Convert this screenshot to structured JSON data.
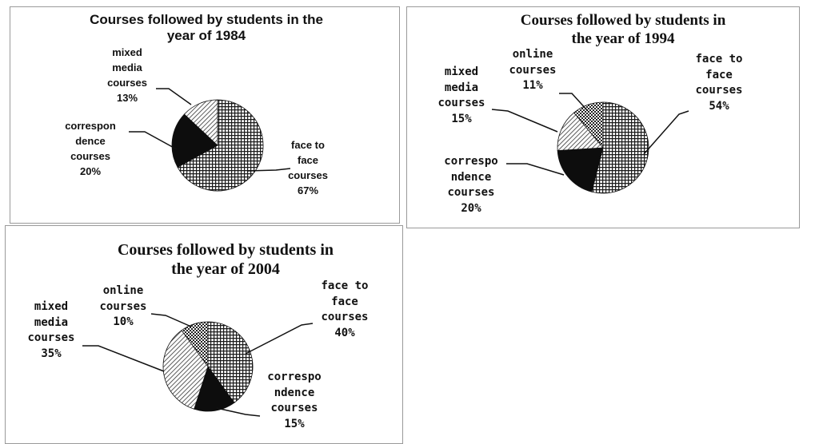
{
  "chart_data": [
    {
      "type": "pie",
      "title": "Courses followed by students in the year of 1984",
      "title_lines": [
        "Courses followed by students in the",
        "year of 1984"
      ],
      "slices": [
        {
          "key": "face",
          "label": "face to face courses",
          "value": 67,
          "label_lines": [
            "face to",
            "face",
            "courses",
            "67%"
          ]
        },
        {
          "key": "corr",
          "label": "correspondence courses",
          "value": 20,
          "label_lines": [
            "correspon",
            "dence",
            "courses",
            "20%"
          ]
        },
        {
          "key": "mixed",
          "label": "mixed media courses",
          "value": 13,
          "label_lines": [
            "mixed",
            "media",
            "courses",
            "13%"
          ]
        }
      ]
    },
    {
      "type": "pie",
      "title": "Courses followed by students in the year of 1994",
      "title_lines": [
        "Courses followed by students in",
        "the year of 1994"
      ],
      "slices": [
        {
          "key": "face",
          "label": "face to face courses",
          "value": 54,
          "label_lines": [
            "face to",
            "face",
            "courses",
            "54%"
          ]
        },
        {
          "key": "corr",
          "label": "correspondence courses",
          "value": 20,
          "label_lines": [
            "correspo",
            "ndence",
            "courses",
            "20%"
          ]
        },
        {
          "key": "mixed",
          "label": "mixed media courses",
          "value": 15,
          "label_lines": [
            "mixed",
            "media",
            "courses",
            "15%"
          ]
        },
        {
          "key": "online",
          "label": "online courses",
          "value": 11,
          "label_lines": [
            "online",
            "courses",
            "11%"
          ]
        }
      ]
    },
    {
      "type": "pie",
      "title": "Courses followed by students in the year of 2004",
      "title_lines": [
        "Courses followed by students in",
        "the year of 2004"
      ],
      "slices": [
        {
          "key": "face",
          "label": "face to face courses",
          "value": 40,
          "label_lines": [
            "face to",
            "face",
            "courses",
            "40%"
          ]
        },
        {
          "key": "corr",
          "label": "correspondence courses",
          "value": 15,
          "label_lines": [
            "correspo",
            "ndence",
            "courses",
            "15%"
          ]
        },
        {
          "key": "mixed",
          "label": "mixed media courses",
          "value": 35,
          "label_lines": [
            "mixed",
            "media",
            "courses",
            "35%"
          ]
        },
        {
          "key": "online",
          "label": "online courses",
          "value": 10,
          "label_lines": [
            "online",
            "courses",
            "10%"
          ]
        }
      ]
    }
  ],
  "colors": {
    "ink": "#111111",
    "face_bg": "#ffffff",
    "face_grid": "#1a1a1a",
    "corr_fill": "#0d0d0d",
    "mixed_bg": "#ffffff",
    "mixed_hatch": "#333333",
    "online_bg": "#ffffff",
    "online_dots": "#222222",
    "leader": "#111111",
    "panel_border": "#9a9a9a"
  }
}
